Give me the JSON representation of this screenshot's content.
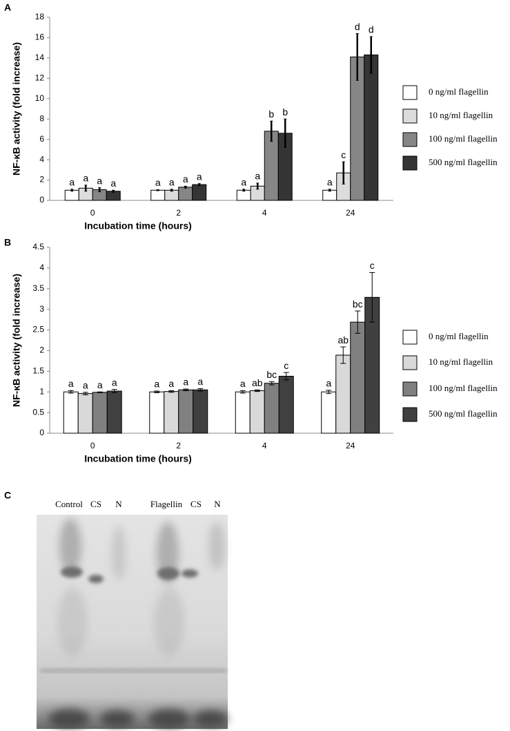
{
  "chart_data": [
    {
      "type": "bar",
      "panel": "A",
      "y_label": "NF-κB activity (fold increase)",
      "x_label": "Incubation time (hours)",
      "categories": [
        "0",
        "2",
        "4",
        "24"
      ],
      "series": [
        {
          "name": "0 ng/ml flagellin",
          "color": "#ffffff",
          "values": [
            1.0,
            1.0,
            1.0,
            1.0
          ],
          "errors": [
            0.1,
            0.05,
            0.1,
            0.1
          ],
          "letters": [
            "a",
            "a",
            "a",
            "a"
          ]
        },
        {
          "name": "10 ng/ml flagellin",
          "color": "#dcdcdc",
          "values": [
            1.2,
            1.0,
            1.4,
            2.7
          ],
          "errors": [
            0.3,
            0.1,
            0.3,
            1.1
          ],
          "letters": [
            "a",
            "a",
            "a",
            "c"
          ]
        },
        {
          "name": "100 ng/ml flagellin",
          "color": "#868686",
          "values": [
            1.05,
            1.3,
            6.8,
            14.1
          ],
          "errors": [
            0.2,
            0.1,
            1.0,
            2.3
          ],
          "letters": [
            "a",
            "a",
            "b",
            "d"
          ]
        },
        {
          "name": "500 ng/ml flagellin",
          "color": "#353535",
          "values": [
            0.9,
            1.55,
            6.6,
            14.3
          ],
          "errors": [
            0.1,
            0.1,
            1.4,
            1.8
          ],
          "letters": [
            "a",
            "a",
            "b",
            "d"
          ]
        }
      ],
      "ylim": [
        0,
        18
      ],
      "yticks": [
        0,
        2,
        4,
        6,
        8,
        10,
        12,
        14,
        16,
        18
      ]
    },
    {
      "type": "bar",
      "panel": "B",
      "y_label": "NF-κB activity (fold increase)",
      "x_label": "Incubation time (hours)",
      "categories": [
        "0",
        "2",
        "4",
        "24"
      ],
      "series": [
        {
          "name": "0 ng/ml flagellin",
          "color": "#ffffff",
          "values": [
            1.0,
            1.0,
            1.0,
            1.0
          ],
          "errors": [
            0.03,
            0.02,
            0.03,
            0.04
          ],
          "letters": [
            "a",
            "a",
            "a",
            "a"
          ]
        },
        {
          "name": "10 ng/ml flagellin",
          "color": "#d9d9d9",
          "values": [
            0.96,
            1.01,
            1.03,
            1.89
          ],
          "errors": [
            0.03,
            0.02,
            0.02,
            0.2
          ],
          "letters": [
            "a",
            "a",
            "ab",
            "ab"
          ]
        },
        {
          "name": "100 ng/ml flagellin",
          "color": "#808080",
          "values": [
            0.99,
            1.05,
            1.21,
            2.69
          ],
          "errors": [
            0.01,
            0.02,
            0.04,
            0.27
          ],
          "letters": [
            "a",
            "a",
            "bc",
            "bc"
          ]
        },
        {
          "name": "500 ng/ml flagellin",
          "color": "#404040",
          "values": [
            1.02,
            1.05,
            1.38,
            3.29
          ],
          "errors": [
            0.04,
            0.03,
            0.09,
            0.6
          ],
          "letters": [
            "a",
            "a",
            "c",
            "c"
          ]
        }
      ],
      "ylim": [
        0,
        4.5
      ],
      "yticks": [
        0,
        0.5,
        1,
        1.5,
        2,
        2.5,
        3,
        3.5,
        4,
        4.5
      ]
    }
  ],
  "gel": {
    "panel": "C",
    "lanes": [
      "Control",
      "CS",
      "N",
      "Flagellin",
      "CS",
      "N"
    ]
  }
}
